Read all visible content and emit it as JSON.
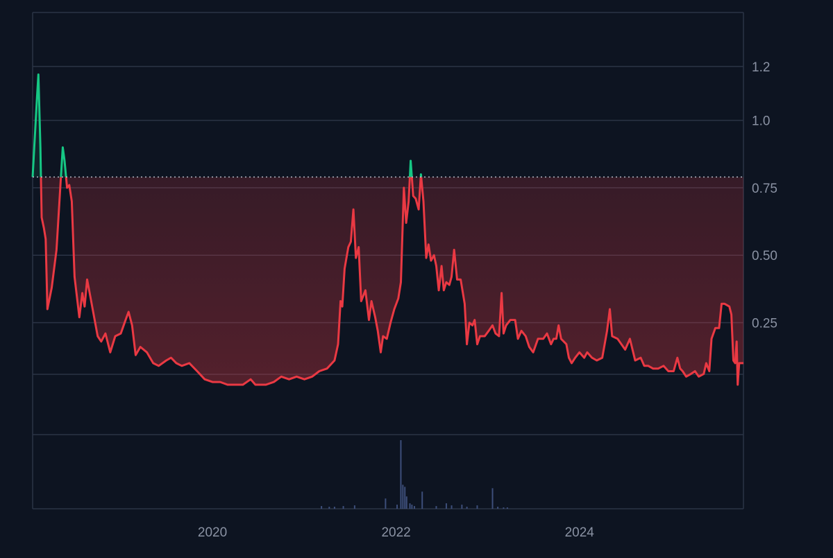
{
  "colors": {
    "background": "#0d1421",
    "grid": "#2b3446",
    "axis_text": "#8a92a3",
    "up_line": "#16c784",
    "down_line": "#ea3943",
    "baseline": "#cfd6e4",
    "volume": "#3d4e7a"
  },
  "chart_data": {
    "type": "area",
    "baseline_value": 0.79,
    "y_axis": {
      "position": "right",
      "ticks": [
        {
          "value": 1.2,
          "label": "1.2"
        },
        {
          "value": 1.0,
          "label": "1.0"
        },
        {
          "value": 0.75,
          "label": "0.75"
        },
        {
          "value": 0.5,
          "label": "0.50"
        },
        {
          "value": 0.25,
          "label": "0.25"
        }
      ],
      "ylim": [
        -0.44,
        1.4
      ]
    },
    "x_axis": {
      "ticks": [
        {
          "value": "2020-01-01",
          "label": "2020"
        },
        {
          "value": "2022-01-01",
          "label": "2022"
        },
        {
          "value": "2024-01-01",
          "label": "2024"
        }
      ],
      "xlim": [
        "2018-01-15",
        "2025-10-15"
      ]
    },
    "grid": true,
    "series": [
      {
        "data": [
          [
            "2018-01-15",
            0.79
          ],
          [
            "2018-02-01",
            1.08
          ],
          [
            "2018-02-07",
            1.17
          ],
          [
            "2018-02-15",
            0.9
          ],
          [
            "2018-02-20",
            0.64
          ],
          [
            "2018-03-01",
            0.6
          ],
          [
            "2018-03-08",
            0.56
          ],
          [
            "2018-03-15",
            0.3
          ],
          [
            "2018-04-01",
            0.38
          ],
          [
            "2018-04-20",
            0.52
          ],
          [
            "2018-05-05",
            0.75
          ],
          [
            "2018-05-15",
            0.9
          ],
          [
            "2018-05-22",
            0.85
          ],
          [
            "2018-06-01",
            0.75
          ],
          [
            "2018-06-10",
            0.76
          ],
          [
            "2018-06-20",
            0.7
          ],
          [
            "2018-07-01",
            0.42
          ],
          [
            "2018-07-20",
            0.27
          ],
          [
            "2018-08-01",
            0.36
          ],
          [
            "2018-08-10",
            0.31
          ],
          [
            "2018-08-20",
            0.41
          ],
          [
            "2018-09-01",
            0.35
          ],
          [
            "2018-10-01",
            0.2
          ],
          [
            "2018-10-15",
            0.18
          ],
          [
            "2018-11-01",
            0.21
          ],
          [
            "2018-11-20",
            0.14
          ],
          [
            "2018-12-10",
            0.2
          ],
          [
            "2019-01-01",
            0.21
          ],
          [
            "2019-01-20",
            0.26
          ],
          [
            "2019-02-01",
            0.29
          ],
          [
            "2019-02-15",
            0.24
          ],
          [
            "2019-03-01",
            0.13
          ],
          [
            "2019-03-20",
            0.16
          ],
          [
            "2019-04-15",
            0.14
          ],
          [
            "2019-05-10",
            0.1
          ],
          [
            "2019-06-01",
            0.09
          ],
          [
            "2019-07-01",
            0.11
          ],
          [
            "2019-07-20",
            0.12
          ],
          [
            "2019-08-10",
            0.1
          ],
          [
            "2019-09-01",
            0.09
          ],
          [
            "2019-10-01",
            0.1
          ],
          [
            "2019-11-01",
            0.07
          ],
          [
            "2019-12-01",
            0.04
          ],
          [
            "2020-01-01",
            0.03
          ],
          [
            "2020-02-01",
            0.03
          ],
          [
            "2020-03-01",
            0.02
          ],
          [
            "2020-04-01",
            0.02
          ],
          [
            "2020-05-01",
            0.02
          ],
          [
            "2020-06-01",
            0.04
          ],
          [
            "2020-06-20",
            0.02
          ],
          [
            "2020-08-01",
            0.02
          ],
          [
            "2020-09-01",
            0.03
          ],
          [
            "2020-10-01",
            0.05
          ],
          [
            "2020-11-01",
            0.04
          ],
          [
            "2020-12-01",
            0.05
          ],
          [
            "2021-01-01",
            0.04
          ],
          [
            "2021-02-01",
            0.05
          ],
          [
            "2021-03-01",
            0.07
          ],
          [
            "2021-04-01",
            0.08
          ],
          [
            "2021-05-01",
            0.11
          ],
          [
            "2021-05-15",
            0.17
          ],
          [
            "2021-05-25",
            0.33
          ],
          [
            "2021-06-01",
            0.31
          ],
          [
            "2021-06-10",
            0.45
          ],
          [
            "2021-06-25",
            0.53
          ],
          [
            "2021-07-05",
            0.55
          ],
          [
            "2021-07-15",
            0.67
          ],
          [
            "2021-07-25",
            0.49
          ],
          [
            "2021-08-05",
            0.53
          ],
          [
            "2021-08-15",
            0.33
          ],
          [
            "2021-09-01",
            0.37
          ],
          [
            "2021-09-15",
            0.26
          ],
          [
            "2021-09-25",
            0.33
          ],
          [
            "2021-10-10",
            0.27
          ],
          [
            "2021-10-20",
            0.22
          ],
          [
            "2021-11-01",
            0.14
          ],
          [
            "2021-11-10",
            0.2
          ],
          [
            "2021-11-25",
            0.19
          ],
          [
            "2021-12-10",
            0.25
          ],
          [
            "2021-12-25",
            0.3
          ],
          [
            "2022-01-10",
            0.34
          ],
          [
            "2022-01-20",
            0.4
          ],
          [
            "2022-02-01",
            0.75
          ],
          [
            "2022-02-10",
            0.62
          ],
          [
            "2022-02-20",
            0.7
          ],
          [
            "2022-02-28",
            0.85
          ],
          [
            "2022-03-10",
            0.72
          ],
          [
            "2022-03-20",
            0.71
          ],
          [
            "2022-04-01",
            0.67
          ],
          [
            "2022-04-10",
            0.8
          ],
          [
            "2022-04-20",
            0.7
          ],
          [
            "2022-05-01",
            0.49
          ],
          [
            "2022-05-10",
            0.54
          ],
          [
            "2022-05-20",
            0.48
          ],
          [
            "2022-06-01",
            0.5
          ],
          [
            "2022-06-10",
            0.46
          ],
          [
            "2022-06-20",
            0.37
          ],
          [
            "2022-07-01",
            0.46
          ],
          [
            "2022-07-10",
            0.37
          ],
          [
            "2022-07-20",
            0.4
          ],
          [
            "2022-08-01",
            0.39
          ],
          [
            "2022-08-10",
            0.42
          ],
          [
            "2022-08-20",
            0.52
          ],
          [
            "2022-09-01",
            0.41
          ],
          [
            "2022-09-15",
            0.41
          ],
          [
            "2022-10-01",
            0.32
          ],
          [
            "2022-10-10",
            0.17
          ],
          [
            "2022-10-20",
            0.25
          ],
          [
            "2022-11-01",
            0.24
          ],
          [
            "2022-11-10",
            0.26
          ],
          [
            "2022-11-20",
            0.17
          ],
          [
            "2022-12-01",
            0.2
          ],
          [
            "2022-12-20",
            0.2
          ],
          [
            "2023-01-05",
            0.22
          ],
          [
            "2023-01-20",
            0.24
          ],
          [
            "2023-02-01",
            0.21
          ],
          [
            "2023-02-15",
            0.2
          ],
          [
            "2023-02-25",
            0.36
          ],
          [
            "2023-03-05",
            0.21
          ],
          [
            "2023-03-15",
            0.24
          ],
          [
            "2023-04-01",
            0.26
          ],
          [
            "2023-04-20",
            0.26
          ],
          [
            "2023-05-01",
            0.19
          ],
          [
            "2023-05-15",
            0.22
          ],
          [
            "2023-06-01",
            0.2
          ],
          [
            "2023-06-15",
            0.16
          ],
          [
            "2023-07-01",
            0.14
          ],
          [
            "2023-07-20",
            0.19
          ],
          [
            "2023-08-10",
            0.19
          ],
          [
            "2023-08-25",
            0.21
          ],
          [
            "2023-09-10",
            0.17
          ],
          [
            "2023-09-20",
            0.19
          ],
          [
            "2023-10-01",
            0.19
          ],
          [
            "2023-10-10",
            0.24
          ],
          [
            "2023-10-20",
            0.19
          ],
          [
            "2023-11-10",
            0.17
          ],
          [
            "2023-11-20",
            0.12
          ],
          [
            "2023-12-01",
            0.1
          ],
          [
            "2023-12-15",
            0.12
          ],
          [
            "2024-01-01",
            0.14
          ],
          [
            "2024-01-20",
            0.12
          ],
          [
            "2024-02-01",
            0.14
          ],
          [
            "2024-02-20",
            0.12
          ],
          [
            "2024-03-10",
            0.11
          ],
          [
            "2024-04-01",
            0.12
          ],
          [
            "2024-04-20",
            0.22
          ],
          [
            "2024-05-01",
            0.3
          ],
          [
            "2024-05-10",
            0.2
          ],
          [
            "2024-06-01",
            0.19
          ],
          [
            "2024-07-01",
            0.15
          ],
          [
            "2024-07-20",
            0.19
          ],
          [
            "2024-08-10",
            0.11
          ],
          [
            "2024-09-01",
            0.12
          ],
          [
            "2024-09-15",
            0.09
          ],
          [
            "2024-10-01",
            0.09
          ],
          [
            "2024-10-20",
            0.08
          ],
          [
            "2024-11-10",
            0.08
          ],
          [
            "2024-12-01",
            0.09
          ],
          [
            "2024-12-20",
            0.07
          ],
          [
            "2025-01-10",
            0.07
          ],
          [
            "2025-01-25",
            0.12
          ],
          [
            "2025-02-05",
            0.08
          ],
          [
            "2025-02-15",
            0.07
          ],
          [
            "2025-03-01",
            0.05
          ],
          [
            "2025-03-20",
            0.06
          ],
          [
            "2025-04-05",
            0.07
          ],
          [
            "2025-04-20",
            0.05
          ],
          [
            "2025-05-10",
            0.06
          ],
          [
            "2025-05-20",
            0.1
          ],
          [
            "2025-06-01",
            0.07
          ],
          [
            "2025-06-10",
            0.19
          ],
          [
            "2025-06-25",
            0.23
          ],
          [
            "2025-07-10",
            0.23
          ],
          [
            "2025-07-20",
            0.32
          ],
          [
            "2025-08-01",
            0.32
          ],
          [
            "2025-08-20",
            0.31
          ],
          [
            "2025-08-28",
            0.28
          ],
          [
            "2025-09-05",
            0.11
          ],
          [
            "2025-09-12",
            0.1
          ],
          [
            "2025-09-18",
            0.18
          ],
          [
            "2025-09-22",
            0.02
          ],
          [
            "2025-09-28",
            0.1
          ],
          [
            "2025-10-05",
            0.1
          ],
          [
            "2025-10-15",
            0.1
          ]
        ]
      }
    ],
    "volume": [
      [
        "2021-03-10",
        0.04
      ],
      [
        "2021-04-10",
        0.03
      ],
      [
        "2021-05-01",
        0.03
      ],
      [
        "2021-06-05",
        0.04
      ],
      [
        "2021-07-20",
        0.05
      ],
      [
        "2021-11-20",
        0.15
      ],
      [
        "2022-01-05",
        0.06
      ],
      [
        "2022-01-20",
        1.0
      ],
      [
        "2022-01-28",
        0.35
      ],
      [
        "2022-02-05",
        0.32
      ],
      [
        "2022-02-12",
        0.18
      ],
      [
        "2022-02-25",
        0.08
      ],
      [
        "2022-03-05",
        0.06
      ],
      [
        "2022-03-15",
        0.04
      ],
      [
        "2022-04-15",
        0.25
      ],
      [
        "2022-06-10",
        0.04
      ],
      [
        "2022-07-20",
        0.08
      ],
      [
        "2022-08-10",
        0.05
      ],
      [
        "2022-09-20",
        0.06
      ],
      [
        "2022-10-10",
        0.03
      ],
      [
        "2022-11-20",
        0.05
      ],
      [
        "2023-01-20",
        0.3
      ],
      [
        "2023-02-10",
        0.03
      ],
      [
        "2023-03-05",
        0.02
      ],
      [
        "2023-03-20",
        0.02
      ]
    ]
  }
}
